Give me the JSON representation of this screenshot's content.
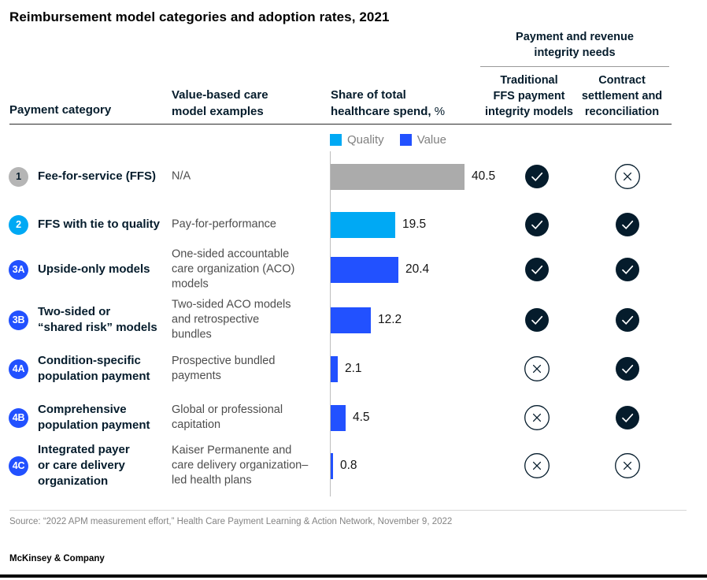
{
  "title": "Reimbursement model categories and adoption rates, 2021",
  "columns": {
    "payment_category": "Payment category",
    "examples": "Value-based care\nmodel examples",
    "spend": "Share of total\nhealthcare spend,",
    "spend_unit": " %",
    "group_header": "Payment and revenue\nintegrity needs",
    "sub1": "Traditional\nFFS payment\nintegrity models",
    "sub2": "Contract\nsettlement and\nreconciliation"
  },
  "legend": [
    {
      "label": "Quality",
      "color": "#00A9F4"
    },
    {
      "label": "Value",
      "color": "#2251FF"
    }
  ],
  "colors": {
    "dark_navy": "#051C2C",
    "blue": "#2251FF",
    "cyan": "#00A9F4",
    "gray_bar": "#ababab",
    "gray_badge": "#b5b5b5"
  },
  "rows": [
    {
      "badge": "1",
      "badge_color": "#b5b5b5",
      "badge_text_color": "#051C2C",
      "category": "Fee-for-service (FFS)",
      "example": "N/A",
      "value": 40.5,
      "value_label": "40.5",
      "bar_color": "#ababab",
      "ffs_integrity": "check",
      "contract_settlement": "cross",
      "center": 224
    },
    {
      "badge": "2",
      "badge_color": "#00A9F4",
      "badge_text_color": "#ffffff",
      "category": "FFS with tie to quality",
      "example": "Pay-for-performance",
      "value": 19.5,
      "value_label": "19.5",
      "bar_color": "#00A9F4",
      "ffs_integrity": "check",
      "contract_settlement": "check",
      "center": 285
    },
    {
      "badge": "3A",
      "badge_color": "#2251FF",
      "badge_text_color": "#ffffff",
      "category": "Upside-only models",
      "example": "One-sided accountable\ncare organization (ACO)\nmodels",
      "value": 20.4,
      "value_label": "20.4",
      "bar_color": "#2251FF",
      "ffs_integrity": "check",
      "contract_settlement": "check",
      "center": 342
    },
    {
      "badge": "3B",
      "badge_color": "#2251FF",
      "badge_text_color": "#ffffff",
      "category": "Two-sided or\n“shared risk” models",
      "example": "Two-sided ACO models\nand retrospective\nbundles",
      "value": 12.2,
      "value_label": "12.2",
      "bar_color": "#2251FF",
      "ffs_integrity": "check",
      "contract_settlement": "check",
      "center": 406
    },
    {
      "badge": "4A",
      "badge_color": "#2251FF",
      "badge_text_color": "#ffffff",
      "category": "Condition-specific\npopulation payment",
      "example": "Prospective bundled\npayments",
      "value": 2.1,
      "value_label": "2.1",
      "bar_color": "#2251FF",
      "ffs_integrity": "cross",
      "contract_settlement": "check",
      "center": 468
    },
    {
      "badge": "4B",
      "badge_color": "#2251FF",
      "badge_text_color": "#ffffff",
      "category": "Comprehensive\npopulation payment",
      "example": "Global or professional\ncapitation",
      "value": 4.5,
      "value_label": "4.5",
      "bar_color": "#2251FF",
      "ffs_integrity": "cross",
      "contract_settlement": "check",
      "center": 530
    },
    {
      "badge": "4C",
      "badge_color": "#2251FF",
      "badge_text_color": "#ffffff",
      "category": "Integrated payer\nor care delivery\norganization",
      "example": "Kaiser Permanente and\ncare delivery organization–\nled health plans",
      "value": 0.8,
      "value_label": "0.8",
      "bar_color": "#2251FF",
      "ffs_integrity": "cross",
      "contract_settlement": "cross",
      "center": 591
    }
  ],
  "chart_data": {
    "type": "bar",
    "orientation": "horizontal",
    "title": "Share of total healthcare spend, %",
    "categories": [
      "Fee-for-service (FFS)",
      "FFS with tie to quality",
      "Upside-only models",
      "Two-sided or “shared risk” models",
      "Condition-specific population payment",
      "Comprehensive population payment",
      "Integrated payer or care delivery organization"
    ],
    "values": [
      40.5,
      19.5,
      20.4,
      12.2,
      2.1,
      4.5,
      0.8
    ],
    "bar_colors": [
      "#ababab",
      "#00A9F4",
      "#2251FF",
      "#2251FF",
      "#2251FF",
      "#2251FF",
      "#2251FF"
    ],
    "legend": [
      {
        "label": "Quality",
        "color": "#00A9F4"
      },
      {
        "label": "Value",
        "color": "#2251FF"
      }
    ],
    "xlim": [
      0,
      45
    ],
    "grid": false,
    "payment_integrity_matrix": {
      "columns": [
        "Traditional FFS payment integrity models",
        "Contract settlement and reconciliation"
      ],
      "rows": [
        [
          "check",
          "cross"
        ],
        [
          "check",
          "check"
        ],
        [
          "check",
          "check"
        ],
        [
          "check",
          "check"
        ],
        [
          "cross",
          "check"
        ],
        [
          "cross",
          "check"
        ],
        [
          "cross",
          "cross"
        ]
      ]
    }
  },
  "source": "Source: “2022 APM measurement effort,” Health Care Payment Learning & Action Network, November 9, 2022",
  "footer": "McKinsey & Company"
}
